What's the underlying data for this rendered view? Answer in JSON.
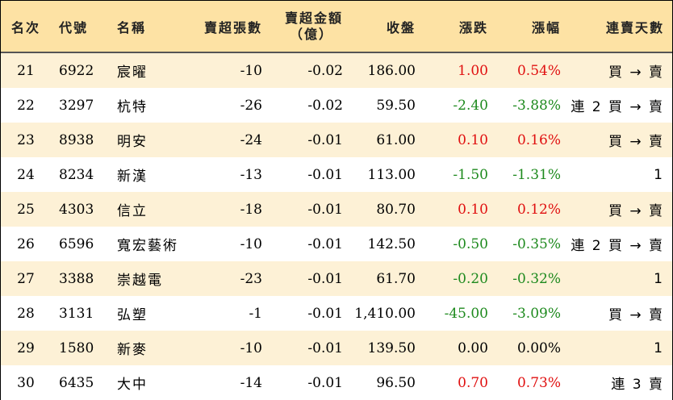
{
  "colors": {
    "header_bg": "#fde2a4",
    "odd_row_bg": "#fdf1d6",
    "even_row_bg": "#ffffff",
    "up": "#e01010",
    "down": "#1e8a1e",
    "flat": "#000000"
  },
  "headers": {
    "rank": "名次",
    "code": "代號",
    "name": "名稱",
    "net_sell_lots": "賣超張數",
    "net_sell_amount": "賣超金額",
    "net_sell_amount_unit": "（億）",
    "close": "收盤",
    "change": "漲跌",
    "change_pct": "漲幅",
    "consecutive_days": "連賣天數"
  },
  "rows": [
    {
      "rank": "21",
      "code": "6922",
      "name": "宸曜",
      "lots": "-10",
      "amount": "-0.02",
      "close": "186.00",
      "change": "1.00",
      "pct": "0.54%",
      "days": "買 → 賣",
      "trend": "up"
    },
    {
      "rank": "22",
      "code": "3297",
      "name": "杭特",
      "lots": "-26",
      "amount": "-0.02",
      "close": "59.50",
      "change": "-2.40",
      "pct": "-3.88%",
      "days": "連 2 買 → 賣",
      "trend": "down"
    },
    {
      "rank": "23",
      "code": "8938",
      "name": "明安",
      "lots": "-24",
      "amount": "-0.01",
      "close": "61.00",
      "change": "0.10",
      "pct": "0.16%",
      "days": "買 → 賣",
      "trend": "up"
    },
    {
      "rank": "24",
      "code": "8234",
      "name": "新漢",
      "lots": "-13",
      "amount": "-0.01",
      "close": "113.00",
      "change": "-1.50",
      "pct": "-1.31%",
      "days": "1",
      "trend": "down"
    },
    {
      "rank": "25",
      "code": "4303",
      "name": "信立",
      "lots": "-18",
      "amount": "-0.01",
      "close": "80.70",
      "change": "0.10",
      "pct": "0.12%",
      "days": "買 → 賣",
      "trend": "up"
    },
    {
      "rank": "26",
      "code": "6596",
      "name": "寬宏藝術",
      "lots": "-10",
      "amount": "-0.01",
      "close": "142.50",
      "change": "-0.50",
      "pct": "-0.35%",
      "days": "連 2 買 → 賣",
      "trend": "down"
    },
    {
      "rank": "27",
      "code": "3388",
      "name": "崇越電",
      "lots": "-23",
      "amount": "-0.01",
      "close": "61.70",
      "change": "-0.20",
      "pct": "-0.32%",
      "days": "1",
      "trend": "down"
    },
    {
      "rank": "28",
      "code": "3131",
      "name": "弘塑",
      "lots": "-1",
      "amount": "-0.01",
      "close": "1,410.00",
      "change": "-45.00",
      "pct": "-3.09%",
      "days": "買 → 賣",
      "trend": "down"
    },
    {
      "rank": "29",
      "code": "1580",
      "name": "新麥",
      "lots": "-10",
      "amount": "-0.01",
      "close": "139.50",
      "change": "0.00",
      "pct": "0.00%",
      "days": "1",
      "trend": "flat"
    },
    {
      "rank": "30",
      "code": "6435",
      "name": "大中",
      "lots": "-14",
      "amount": "-0.01",
      "close": "96.50",
      "change": "0.70",
      "pct": "0.73%",
      "days": "連 3 賣",
      "trend": "up"
    }
  ]
}
